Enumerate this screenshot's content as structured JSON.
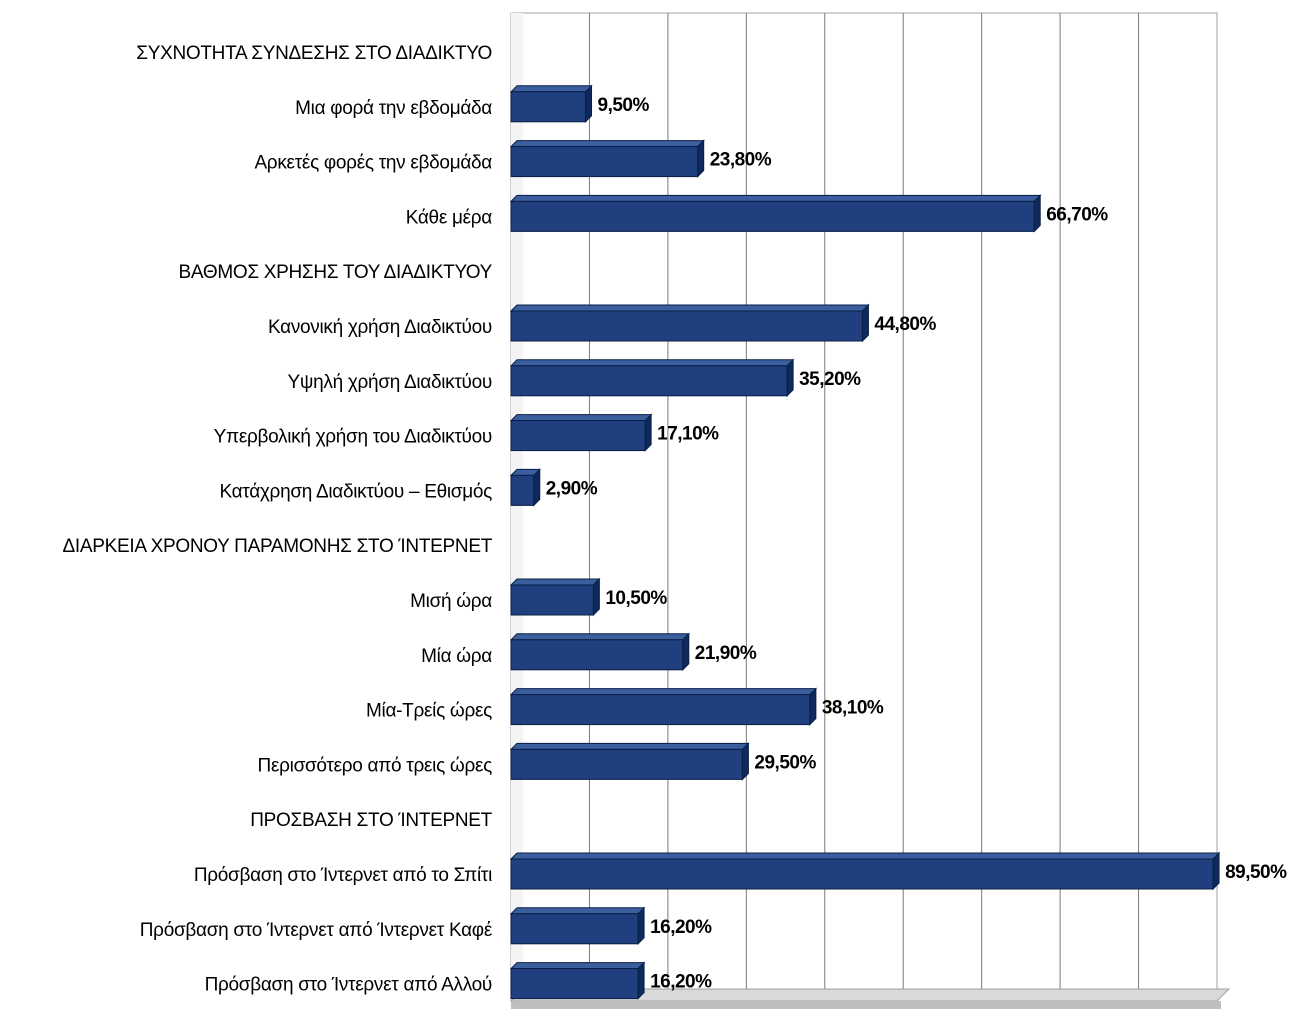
{
  "chart_data": {
    "type": "bar",
    "orientation": "horizontal",
    "style": "3d",
    "bar_color": "#1F3F7F",
    "bar_side_color": "#0E2A5C",
    "bar_top_color": "#3A5E9E",
    "gridlines": true,
    "legend": "none",
    "xlim": [
      0,
      90
    ],
    "categories": [
      "ΣΥΧΝΟΤΗΤΑ ΣΥΝΔΕΣΗΣ ΣΤΟ ΔΙΑΔΙΚΤΥΟ",
      "Μια φορά την εβδομάδα",
      "Αρκετές φορές την εβδομάδα",
      "Κάθε μέρα",
      "ΒΑΘΜΟΣ ΧΡΗΣΗΣ ΤΟΥ ΔΙΑΔΙΚΤΥΟΥ",
      "Κανονική χρήση Διαδικτύου",
      "Υψηλή χρήση Διαδικτύου",
      "Υπερβολική χρήση του Διαδικτύου",
      "Κατάχρηση Διαδικτύου – Εθισμός",
      "ΔΙΑΡΚΕΙΑ ΧΡΟΝΟΥ ΠΑΡΑΜΟΝΗΣ ΣΤΟ ΊΝΤΕΡΝΕΤ",
      "Μισή ώρα",
      "Μία ώρα",
      "Μία-Τρείς ώρες",
      "Περισσότερο από τρεις ώρες",
      "ΠΡΟΣΒΑΣΗ ΣΤΟ ΊΝΤΕΡΝΕΤ",
      "Πρόσβαση στο Ίντερνετ από το Σπίτι",
      "Πρόσβαση στο Ίντερνετ από Ίντερνετ Καφέ",
      "Πρόσβαση στο Ίντερνετ από Αλλού"
    ],
    "values": [
      null,
      9.5,
      23.8,
      66.7,
      null,
      44.8,
      35.2,
      17.1,
      2.9,
      null,
      10.5,
      21.9,
      38.1,
      29.5,
      null,
      89.5,
      16.2,
      16.2
    ],
    "data_labels": [
      "",
      "9,50%",
      "23,80%",
      "66,70%",
      "",
      "44,80%",
      "35,20%",
      "17,10%",
      "2,90%",
      "",
      "10,50%",
      "21,90%",
      "38,10%",
      "29,50%",
      "",
      "89,50%",
      "16,20%",
      "16,20%"
    ]
  }
}
